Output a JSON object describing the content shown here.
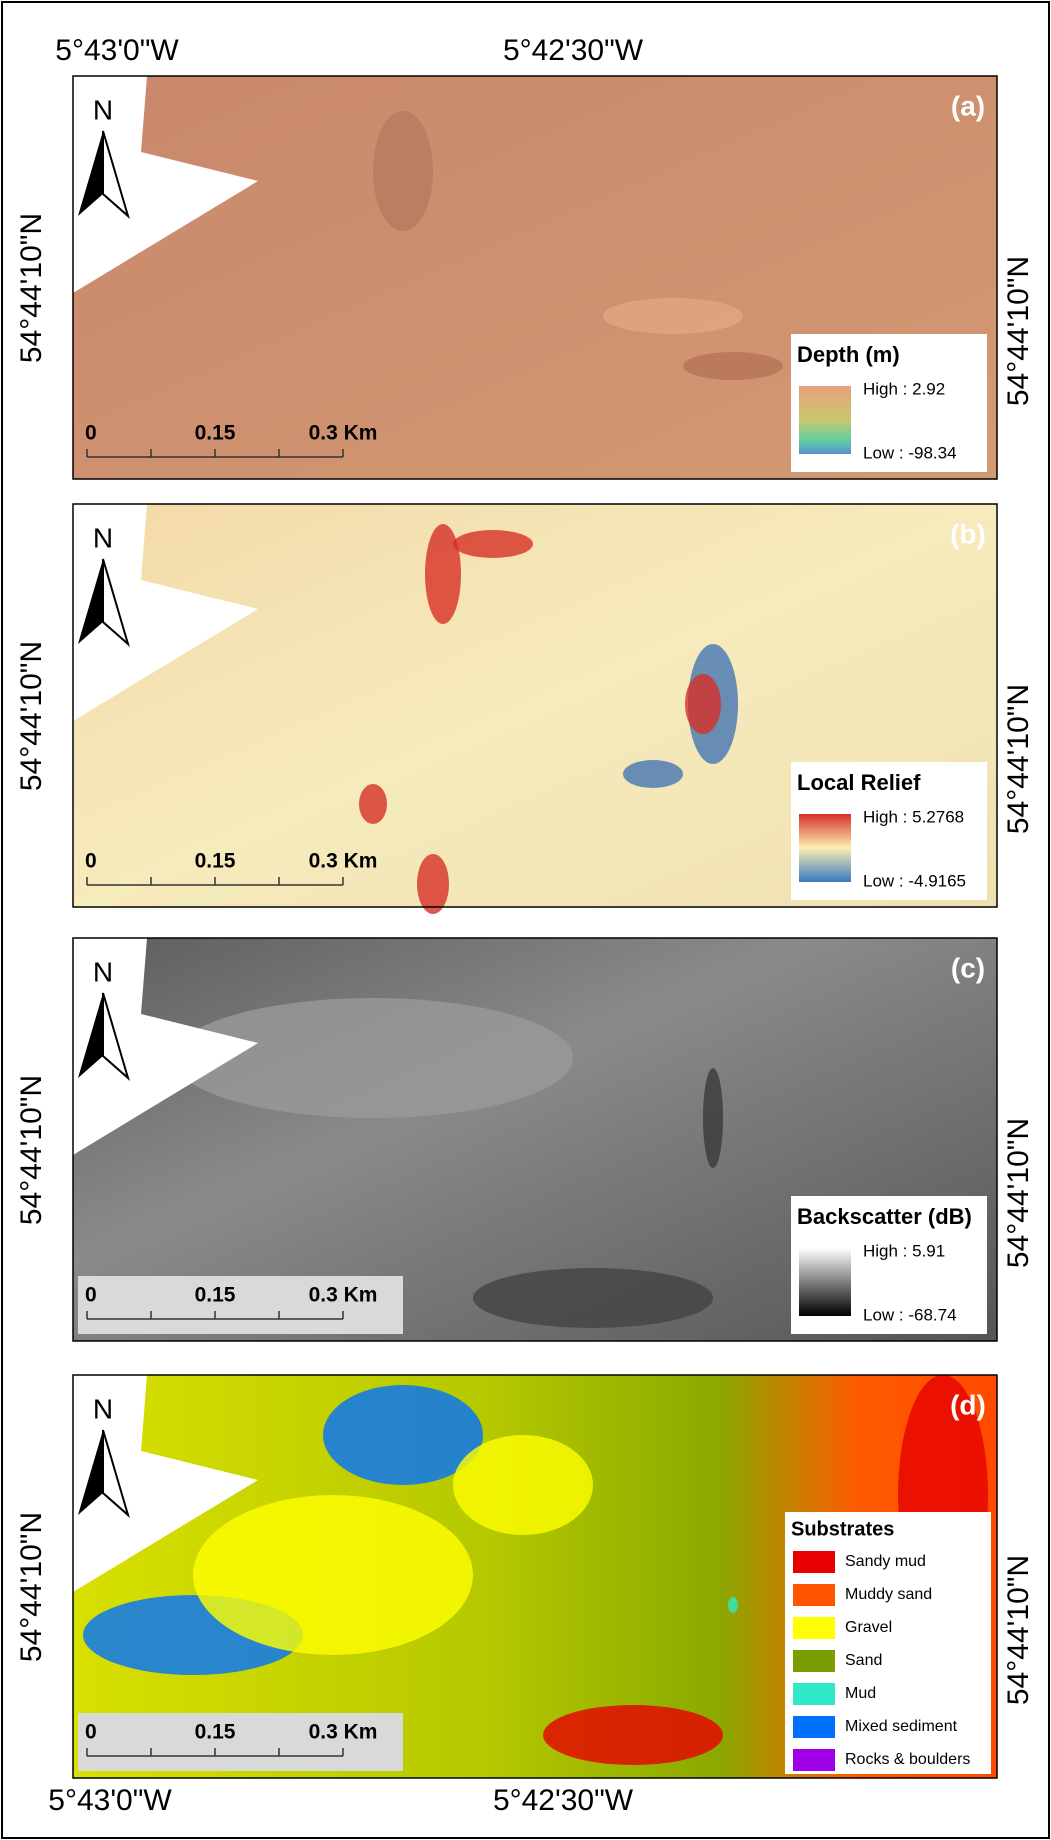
{
  "coordinates": {
    "top": [
      "5°43'0\"W",
      "5°42'30\"W"
    ],
    "bottom": [
      "5°43'0\"W",
      "5°42'30\"W"
    ]
  },
  "panels": [
    {
      "label": "(a)",
      "north": "N",
      "latitude": "54°44'10\"N",
      "scale": [
        "0",
        "0.15",
        "0.3 Km"
      ],
      "legend": {
        "title": "Depth (m)",
        "high": "High : 2.92",
        "low": "Low : -98.34"
      }
    },
    {
      "label": "(b)",
      "north": "N",
      "latitude": "54°44'10\"N",
      "scale": [
        "0",
        "0.15",
        "0.3 Km"
      ],
      "legend": {
        "title": "Local Relief",
        "high": "High : 5.2768",
        "low": "Low : -4.9165"
      }
    },
    {
      "label": "(c)",
      "north": "N",
      "latitude": "54°44'10\"N",
      "scale": [
        "0",
        "0.15",
        "0.3 Km"
      ],
      "legend": {
        "title": "Backscatter (dB)",
        "high": "High : 5.91",
        "low": "Low : -68.74"
      }
    },
    {
      "label": "(d)",
      "north": "N",
      "latitude": "54°44'10\"N",
      "scale": [
        "0",
        "0.15",
        "0.3 Km"
      ],
      "legend": {
        "title": "Substrates",
        "items": [
          {
            "label": "Sandy mud",
            "color": "#e60000"
          },
          {
            "label": "Muddy sand",
            "color": "#ff5500"
          },
          {
            "label": "Gravel",
            "color": "#ffff00"
          },
          {
            "label": "Sand",
            "color": "#7a9e00"
          },
          {
            "label": "Mud",
            "color": "#2ee8c8"
          },
          {
            "label": "Mixed sediment",
            "color": "#0070ff"
          },
          {
            "label": "Rocks & boulders",
            "color": "#a000e6"
          }
        ]
      }
    }
  ]
}
